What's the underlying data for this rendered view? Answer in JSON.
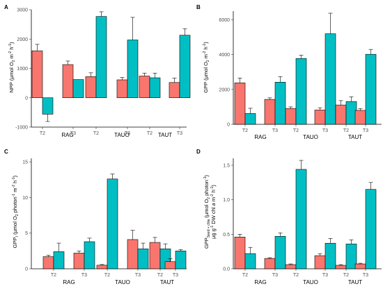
{
  "colors": {
    "series_a": "#f8766d",
    "series_b": "#00bfc4",
    "bar_outline": "#000000",
    "error_bar": "#000000"
  },
  "chart_data": [
    {
      "panel": "A",
      "type": "bar",
      "ylabel": "NPP (µmol O₂ m⁻² h⁻¹)",
      "ylim": [
        -1000,
        3000
      ],
      "yticks": [
        -1000,
        0,
        1000,
        2000,
        3000
      ],
      "groups": [
        "RAG",
        "TAUO",
        "TAUT"
      ],
      "categories": [
        "T2",
        "T3",
        "T2",
        "T3",
        "T2",
        "T3"
      ],
      "series": [
        {
          "values": [
            1600,
            1130,
            720,
            610,
            740,
            520
          ],
          "errors": [
            220,
            120,
            130,
            80,
            100,
            150
          ]
        },
        {
          "values": [
            -560,
            620,
            2770,
            1970,
            680,
            2130
          ],
          "errors": [
            250,
            0,
            160,
            770,
            160,
            220
          ]
        }
      ],
      "grid": false
    },
    {
      "panel": "B",
      "type": "bar",
      "ylabel": "GPP (µmol O₂ m⁻² h⁻¹)",
      "ylim": [
        0,
        6500
      ],
      "yticks": [
        0,
        2000,
        4000,
        6000
      ],
      "groups": [
        "RAG",
        "TAUO",
        "TAUT"
      ],
      "categories": [
        "T2",
        "T3",
        "T2",
        "T3",
        "T2",
        "T3"
      ],
      "series": [
        {
          "values": [
            2380,
            1430,
            910,
            820,
            1110,
            800
          ],
          "errors": [
            280,
            90,
            90,
            130,
            250,
            100
          ]
        },
        {
          "values": [
            620,
            2420,
            3780,
            5200,
            1310,
            4020
          ],
          "errors": [
            300,
            320,
            190,
            1180,
            270,
            280
          ]
        }
      ],
      "grid": false
    },
    {
      "panel": "C",
      "type": "bar",
      "ylabel": "GPPₗ (µmol O₂ photon⁻¹ m⁻² h⁻¹)",
      "ylim": [
        0,
        15.5
      ],
      "yticks": [
        0,
        5,
        10,
        15
      ],
      "groups": [
        "RAG",
        "TAUO",
        "TAUT"
      ],
      "categories": [
        "T2",
        "T3",
        "T2",
        "T3",
        "T2",
        "T3"
      ],
      "series": [
        {
          "values": [
            1.7,
            2.2,
            0.5,
            4.1,
            3.7,
            1.0
          ],
          "errors": [
            0.2,
            0.3,
            0.1,
            1.3,
            0.7,
            0.4
          ]
        },
        {
          "values": [
            2.4,
            3.8,
            12.6,
            2.8,
            2.8,
            2.5
          ],
          "errors": [
            1.2,
            0.5,
            0.7,
            0.8,
            0.7,
            0.2
          ]
        }
      ],
      "grid": false
    },
    {
      "panel": "D",
      "type": "bar",
      "ylabel": "GPP_(Seed+chla) (µmol O₂ photon⁻¹ µg g⁻¹ DW chl a m⁻² h⁻¹)",
      "ylim": [
        0,
        1.6
      ],
      "yticks": [
        0.0,
        0.5,
        1.0,
        1.5
      ],
      "groups": [
        "RAG",
        "TAUO",
        "TAUT"
      ],
      "categories": [
        "T2",
        "T3",
        "T2",
        "T3",
        "T2",
        "T3"
      ],
      "series": [
        {
          "values": [
            0.46,
            0.15,
            0.06,
            0.19,
            0.05,
            0.07
          ],
          "errors": [
            0.04,
            0.01,
            0.01,
            0.03,
            0.01,
            0.01
          ]
        },
        {
          "values": [
            0.22,
            0.47,
            1.44,
            0.37,
            0.36,
            1.15
          ],
          "errors": [
            0.09,
            0.05,
            0.13,
            0.07,
            0.06,
            0.1
          ]
        }
      ],
      "grid": false
    }
  ]
}
